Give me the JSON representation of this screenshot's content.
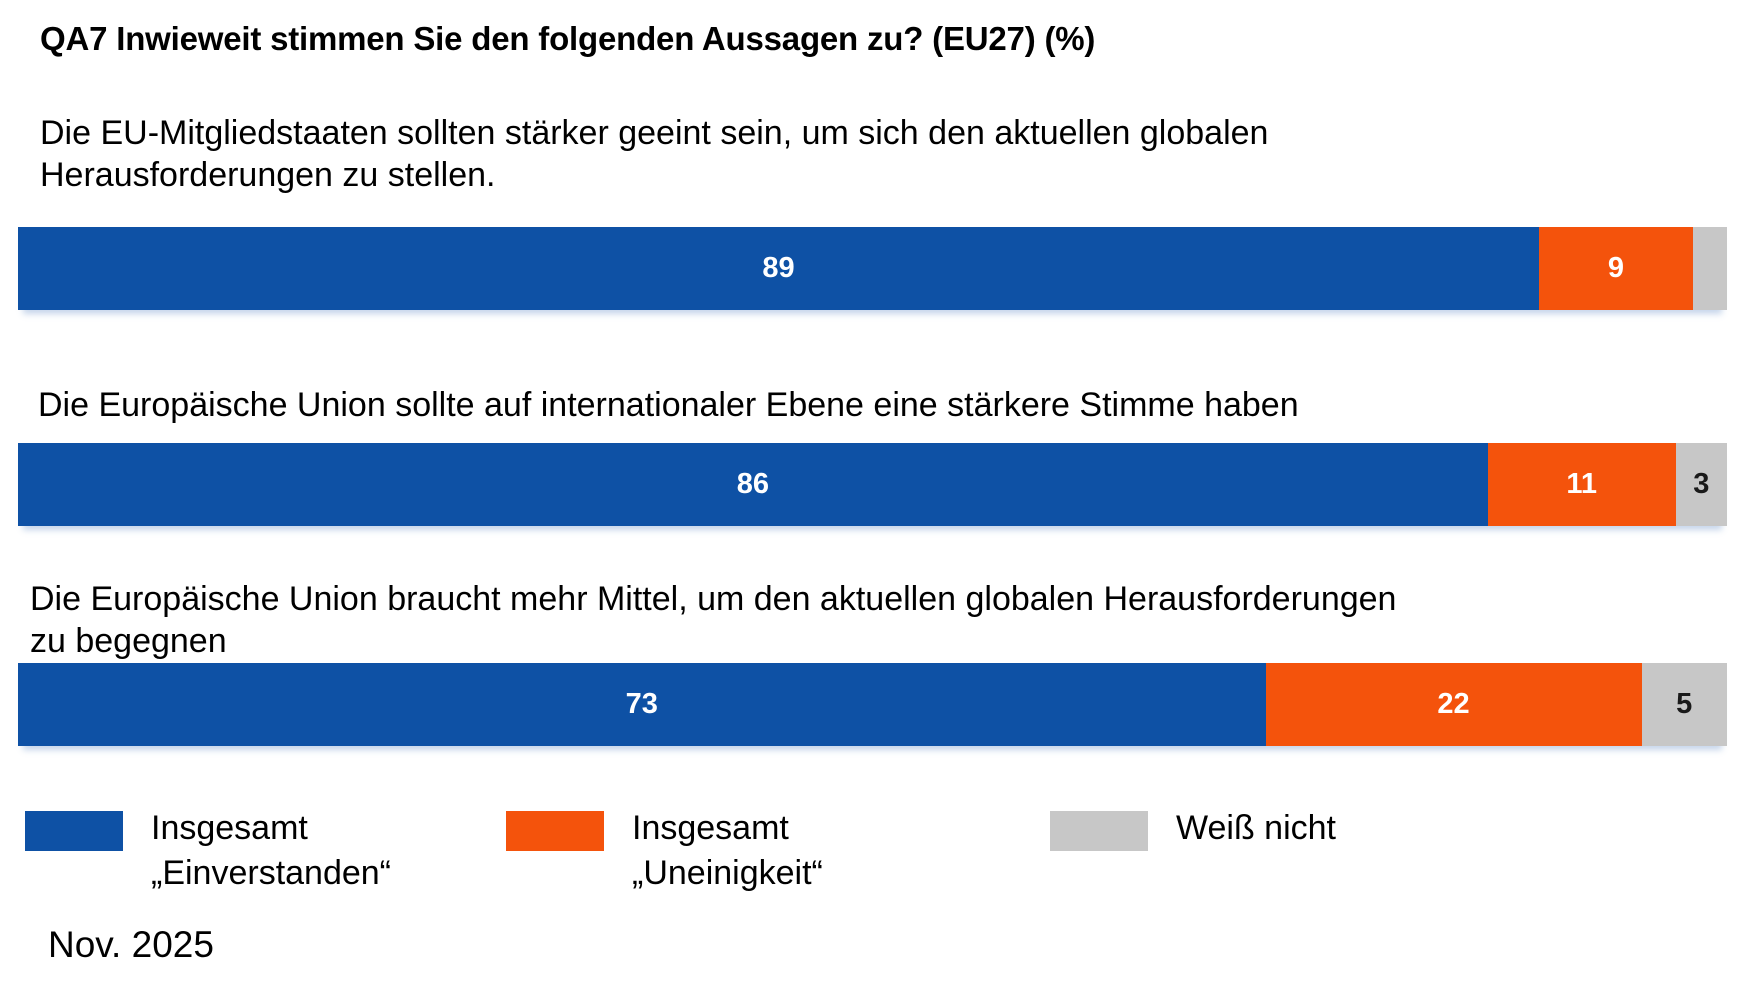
{
  "footer": {
    "date": "Nov. 2025"
  },
  "colors": {
    "agree": "#0E51A5",
    "disagree": "#F4530C",
    "dont_know": "#C7C7C7",
    "value_label_on_dark": "#FFFFFF",
    "value_label_on_gray": "#1A1A1A"
  },
  "legend": {
    "items": [
      {
        "key": "agree",
        "label": "Insgesamt\n„Einverstanden“",
        "color": "#0E51A5"
      },
      {
        "key": "disagree",
        "label": "Insgesamt\n„Uneinigkeit“",
        "color": "#F4530C"
      },
      {
        "key": "dont_know",
        "label": "Weiß nicht",
        "color": "#C7C7C7"
      }
    ]
  },
  "chart_data": {
    "type": "bar",
    "stacked": true,
    "orientation": "horizontal",
    "unit": "%",
    "title": "QA7 Inwieweit stimmen Sie den folgenden Aussagen zu? (EU27) (%)",
    "xlabel": "",
    "ylabel": "",
    "xlim": [
      0,
      100
    ],
    "axis_visible": false,
    "grid": false,
    "legend_position": "bottom",
    "categories": [
      "Die EU-Mitgliedstaaten sollten stärker geeint sein, um sich den aktuellen globalen\nHerausforderungen zu stellen.",
      "Die Europäische Union sollte auf internationaler Ebene eine stärkere Stimme haben",
      "Die Europäische Union braucht mehr Mittel, um den aktuellen globalen Herausforderungen\nzu begegnen"
    ],
    "series": [
      {
        "key": "agree",
        "name": "Insgesamt „Einverstanden“",
        "color": "#0E51A5",
        "values": [
          89,
          86,
          73
        ]
      },
      {
        "key": "disagree",
        "name": "Insgesamt „Uneinigkeit“",
        "color": "#F4530C",
        "values": [
          9,
          11,
          22
        ]
      },
      {
        "key": "dont_know",
        "name": "Weiß nicht",
        "color": "#C7C7C7",
        "values": [
          2,
          3,
          5
        ],
        "show_value_labels": [
          false,
          true,
          true
        ]
      }
    ]
  }
}
